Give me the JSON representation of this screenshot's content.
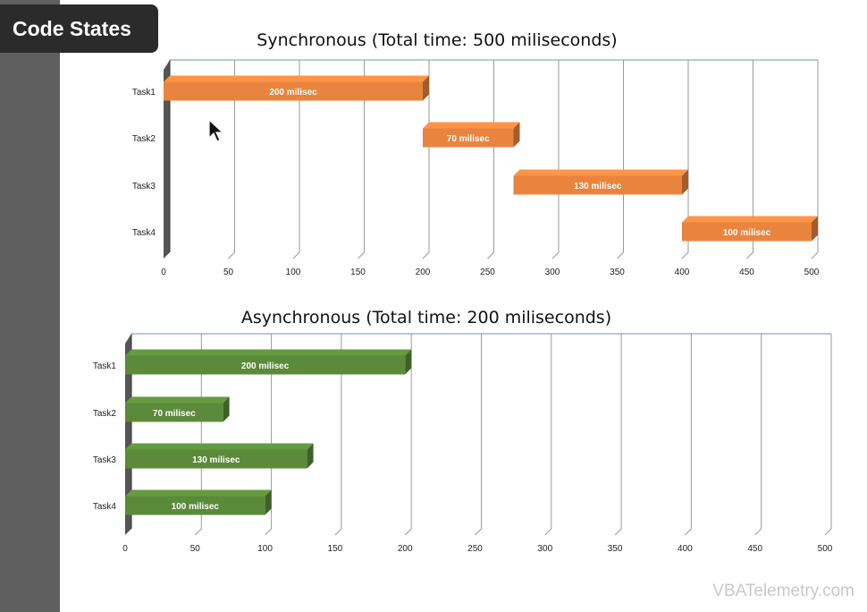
{
  "badge": {
    "label": "Code States"
  },
  "watermark": {
    "text": "VBATelemetry.com"
  },
  "colors": {
    "sync_bar": "#e9843f",
    "async_bar": "#5a8a3a",
    "axis": "#8eaac2",
    "grid": "#9a9a9a"
  },
  "chart_data": [
    {
      "type": "bar",
      "orientation": "horizontal-gantt",
      "title": "Synchronous (Total time: 500 miliseconds)",
      "categories": [
        "Task1",
        "Task2",
        "Task3",
        "Task4"
      ],
      "series": [
        {
          "start": [
            0,
            200,
            270,
            400
          ],
          "duration": [
            200,
            70,
            130,
            100
          ],
          "labels": [
            "200 milisec",
            "70 milisec",
            "130 milisec",
            "100 milisec"
          ]
        }
      ],
      "xlim": [
        0,
        500
      ],
      "xticks": [
        "0",
        "50",
        "100",
        "150",
        "200",
        "250",
        "300",
        "350",
        "400",
        "450",
        "500"
      ],
      "grid": true,
      "color": "#e9843f"
    },
    {
      "type": "bar",
      "orientation": "horizontal-gantt",
      "title": "Asynchronous (Total time: 200 miliseconds)",
      "categories": [
        "Task1",
        "Task2",
        "Task3",
        "Task4"
      ],
      "series": [
        {
          "start": [
            0,
            0,
            0,
            0
          ],
          "duration": [
            200,
            70,
            130,
            100
          ],
          "labels": [
            "200 milisec",
            "70 milisec",
            "130 milisec",
            "100 milisec"
          ]
        }
      ],
      "xlim": [
        0,
        500
      ],
      "xticks": [
        "0",
        "50",
        "100",
        "150",
        "200",
        "250",
        "300",
        "350",
        "400",
        "450",
        "500"
      ],
      "grid": true,
      "color": "#5a8a3a"
    }
  ]
}
